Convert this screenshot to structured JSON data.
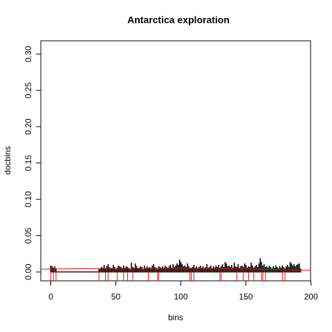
{
  "chart_data": {
    "type": "spike",
    "title": "Antarctica exploration",
    "x_label": "bins",
    "y_label": "docbins",
    "x": [
      0,
      1,
      2,
      3,
      4,
      5,
      6,
      7,
      8,
      9,
      10,
      11,
      12,
      13,
      14,
      15,
      16,
      17,
      18,
      19,
      20,
      21,
      22,
      23,
      24,
      25,
      26,
      27,
      28,
      29,
      30,
      31,
      32,
      33,
      34,
      35,
      36,
      37,
      38,
      39,
      40,
      41,
      42,
      43,
      44,
      45,
      46,
      47,
      48,
      49,
      50,
      51,
      52,
      53,
      54,
      55,
      56,
      57,
      58,
      59,
      60,
      61,
      62,
      63,
      64,
      65,
      66,
      67,
      68,
      69,
      70,
      71,
      72,
      73,
      74,
      75,
      76,
      77,
      78,
      79,
      80,
      81,
      82,
      83,
      84,
      85,
      86,
      87,
      88,
      89,
      90,
      91,
      92,
      93,
      94,
      95,
      96,
      97,
      98,
      99,
      100,
      101,
      102,
      103,
      104,
      105,
      106,
      107,
      108,
      109,
      110,
      111,
      112,
      113,
      114,
      115,
      116,
      117,
      118,
      119,
      120,
      121,
      122,
      123,
      124,
      125,
      126,
      127,
      128,
      129,
      130,
      131,
      132,
      133,
      134,
      135,
      136,
      137,
      138,
      139,
      140,
      141,
      142,
      143,
      144,
      145,
      146,
      147,
      148,
      149,
      150,
      151,
      152,
      153,
      154,
      155,
      156,
      157,
      158,
      159,
      160,
      161,
      162,
      163,
      164,
      165,
      166,
      167,
      168,
      169,
      170,
      171,
      172,
      173,
      174,
      175,
      176,
      177,
      178,
      179,
      180,
      181,
      182,
      183,
      184,
      185,
      186,
      187,
      188,
      189,
      190,
      191,
      192
    ],
    "values": [
      0.008,
      0.007,
      0.005,
      0.007,
      0.004,
      0,
      0,
      0,
      0,
      0,
      0,
      0,
      0,
      0,
      0,
      0,
      0,
      0,
      0,
      0,
      0,
      0,
      0,
      0,
      0,
      0,
      0,
      0,
      0,
      0,
      0,
      0,
      0,
      0,
      0,
      0,
      0,
      0.003,
      0.004,
      0.006,
      0.005,
      0.009,
      0.004,
      0.007,
      0.01,
      0.006,
      0.005,
      0.004,
      0.009,
      0.006,
      0.003,
      0.005,
      0.008,
      0.007,
      0.006,
      0.004,
      0.008,
      0.005,
      0.007,
      0.006,
      0.004,
      0.003,
      0.012,
      0.006,
      0.005,
      0.011,
      0.007,
      0.004,
      0.005,
      0.007,
      0.006,
      0.003,
      0.008,
      0.004,
      0.007,
      0.005,
      0.006,
      0.004,
      0.008,
      0.01,
      0.006,
      0.005,
      0.003,
      0.007,
      0.006,
      0.004,
      0.007,
      0.005,
      0.008,
      0.006,
      0.004,
      0.007,
      0.009,
      0.005,
      0.01,
      0.006,
      0.008,
      0.011,
      0.009,
      0.016,
      0.013,
      0.01,
      0.007,
      0.008,
      0.006,
      0.011,
      0.007,
      0.005,
      0.004,
      0.006,
      0.009,
      0.005,
      0.007,
      0.004,
      0.006,
      0.008,
      0.005,
      0.007,
      0.004,
      0.006,
      0.01,
      0.005,
      0.006,
      0.008,
      0.004,
      0.007,
      0.005,
      0.008,
      0.006,
      0.009,
      0.005,
      0.007,
      0.01,
      0.006,
      0.013,
      0.011,
      0.007,
      0.008,
      0.006,
      0.009,
      0.005,
      0.012,
      0.007,
      0.006,
      0.01,
      0.005,
      0.007,
      0.008,
      0.006,
      0.011,
      0.009,
      0.005,
      0.007,
      0.006,
      0.012,
      0.008,
      0.005,
      0.007,
      0.009,
      0.006,
      0.011,
      0.018,
      0.013,
      0.008,
      0.01,
      0.006,
      0.007,
      0.005,
      0.008,
      0.006,
      0.004,
      0.007,
      0.005,
      0.008,
      0.006,
      0.004,
      0.007,
      0.005,
      0.008,
      0.006,
      0.004,
      0.007,
      0.009,
      0.006,
      0.013,
      0.011,
      0.008,
      0.01,
      0.007,
      0.009,
      0.01,
      0.011,
      0.004
    ],
    "color": "#000000",
    "trend": {
      "color": "#ff0000",
      "x": [
        -7.68,
        0,
        50,
        100,
        150,
        199.68
      ],
      "values": [
        0.0037,
        0.0041,
        0.0049,
        0.0051,
        0.0043,
        0.0022
      ]
    },
    "rug": {
      "color": "#ff0000",
      "x": [
        0,
        2,
        4,
        37,
        42,
        44,
        51,
        56,
        59,
        63,
        75,
        82,
        83,
        107,
        108,
        110,
        130,
        131,
        143,
        148,
        152,
        156,
        162,
        163,
        165,
        178,
        180
      ]
    },
    "xlim": [
      -7.68,
      199.68
    ],
    "ylim": [
      -0.01224,
      0.31824
    ],
    "xticks": [
      0,
      50,
      100,
      150,
      200
    ],
    "yticks": [
      {
        "value": 0,
        "label": "0.00"
      },
      {
        "value": 0.05,
        "label": "0.05"
      },
      {
        "value": 0.1,
        "label": "0.10"
      },
      {
        "value": 0.15,
        "label": "0.15"
      },
      {
        "value": 0.2,
        "label": "0.20"
      },
      {
        "value": 0.25,
        "label": "0.25"
      },
      {
        "value": 0.3,
        "label": "0.30"
      }
    ]
  }
}
